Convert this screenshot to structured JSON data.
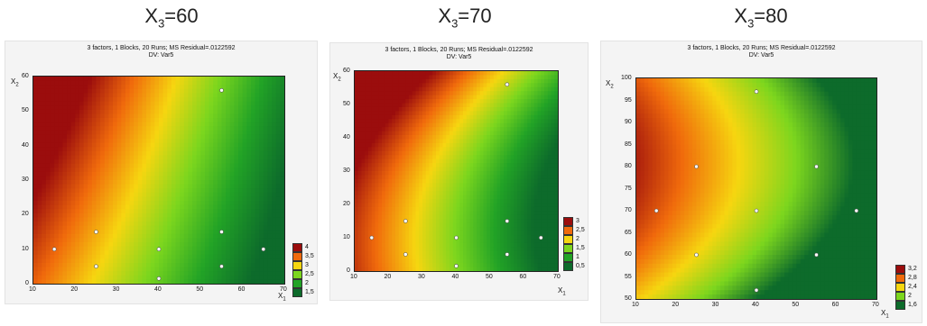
{
  "headings": [
    {
      "text": "X",
      "sub": "3",
      "value": "=60"
    },
    {
      "text": "X",
      "sub": "3",
      "value": "=70"
    },
    {
      "text": "X",
      "sub": "3",
      "value": "=80"
    }
  ],
  "chart_data": [
    {
      "type": "heatmap",
      "title": "3 factors, 1 Blocks, 20 Runs; MS Residual=.0122592",
      "subtitle": "DV: Var5",
      "xlabel": {
        "text": "X",
        "sub": "1"
      },
      "ylabel": {
        "text": "X",
        "sub": "2"
      },
      "xlim": [
        10,
        70
      ],
      "ylim": [
        0,
        60
      ],
      "xticks": [
        "10",
        "20",
        "30",
        "40",
        "50",
        "60",
        "70"
      ],
      "yticks": [
        "0",
        "10",
        "20",
        "30",
        "40",
        "50",
        "60"
      ],
      "points": [
        [
          15,
          10
        ],
        [
          25,
          5
        ],
        [
          25,
          15
        ],
        [
          40,
          1.5
        ],
        [
          40,
          10
        ],
        [
          55,
          5
        ],
        [
          55,
          15
        ],
        [
          55,
          56
        ],
        [
          65,
          10
        ]
      ],
      "legend": [
        {
          "label": "4",
          "color": "#9b0d0d"
        },
        {
          "label": "3,5",
          "color": "#f06a0c"
        },
        {
          "label": "3",
          "color": "#f6d610"
        },
        {
          "label": "2,5",
          "color": "#7cd61e"
        },
        {
          "label": "2",
          "color": "#22a326"
        },
        {
          "label": "1,5",
          "color": "#0d6b2b"
        }
      ]
    },
    {
      "type": "heatmap",
      "title": "3 factors, 1 Blocks, 20 Runs; MS Residual=.0122592",
      "subtitle": "DV: Var5",
      "xlabel": {
        "text": "X",
        "sub": "1"
      },
      "ylabel": {
        "text": "X",
        "sub": "2"
      },
      "xlim": [
        10,
        70
      ],
      "ylim": [
        0,
        60
      ],
      "xticks": [
        "10",
        "20",
        "30",
        "40",
        "50",
        "60",
        "70"
      ],
      "yticks": [
        "0",
        "10",
        "20",
        "30",
        "40",
        "50",
        "60"
      ],
      "points": [
        [
          15,
          10
        ],
        [
          25,
          5
        ],
        [
          25,
          15
        ],
        [
          40,
          1.5
        ],
        [
          40,
          10
        ],
        [
          55,
          5
        ],
        [
          55,
          15
        ],
        [
          55,
          56
        ],
        [
          65,
          10
        ]
      ],
      "legend": [
        {
          "label": "3",
          "color": "#9b0d0d"
        },
        {
          "label": "2,5",
          "color": "#f06a0c"
        },
        {
          "label": "2",
          "color": "#f6d610"
        },
        {
          "label": "1,5",
          "color": "#7cd61e"
        },
        {
          "label": "1",
          "color": "#22a326"
        },
        {
          "label": "0,5",
          "color": "#0d6b2b"
        }
      ]
    },
    {
      "type": "heatmap",
      "title": "3 factors, 1 Blocks, 20 Runs; MS Residual=.0122592",
      "subtitle": "DV: Var5",
      "xlabel": {
        "text": "X",
        "sub": "1"
      },
      "ylabel": {
        "text": "X",
        "sub": "2"
      },
      "xlim": [
        10,
        70
      ],
      "ylim": [
        50,
        100
      ],
      "xticks": [
        "10",
        "20",
        "30",
        "40",
        "50",
        "60",
        "70"
      ],
      "yticks": [
        "50",
        "55",
        "60",
        "65",
        "70",
        "75",
        "80",
        "85",
        "90",
        "95",
        "100"
      ],
      "points": [
        [
          15,
          70
        ],
        [
          25,
          60
        ],
        [
          25,
          80
        ],
        [
          40,
          52
        ],
        [
          40,
          70
        ],
        [
          40,
          97
        ],
        [
          55,
          60
        ],
        [
          55,
          80
        ],
        [
          65,
          70
        ]
      ],
      "legend": [
        {
          "label": "3,2",
          "color": "#9b0d0d"
        },
        {
          "label": "2,8",
          "color": "#f06a0c"
        },
        {
          "label": "2,4",
          "color": "#f6d610"
        },
        {
          "label": "2",
          "color": "#7cd61e"
        },
        {
          "label": "1,6",
          "color": "#0d6b2b"
        }
      ]
    }
  ]
}
